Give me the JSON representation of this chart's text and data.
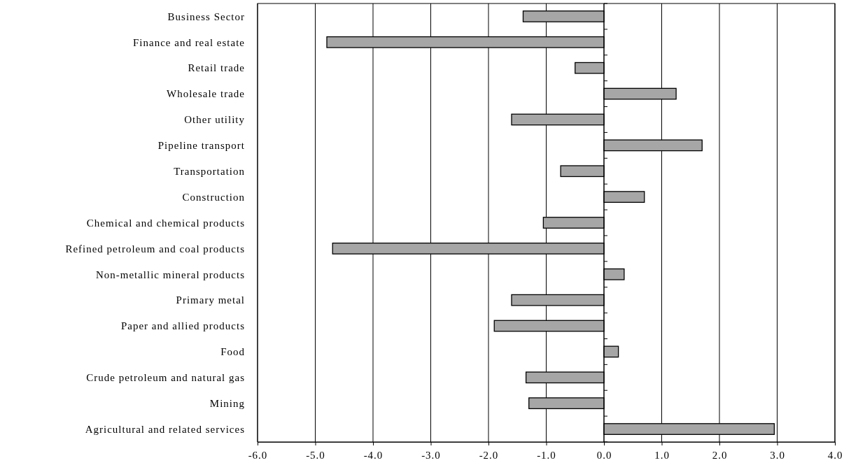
{
  "chart_data": {
    "type": "bar",
    "orientation": "horizontal",
    "categories": [
      "Business Sector",
      "Finance and real estate",
      "Retail trade",
      "Wholesale trade",
      "Other utility",
      "Pipeline transport",
      "Transportation",
      "Construction",
      "Chemical and chemical products",
      "Refined petroleum and coal products",
      "Non-metallic mineral products",
      "Primary metal",
      "Paper and allied products",
      "Food",
      "Crude petroleum and natural gas",
      "Mining",
      "Agricultural and related services"
    ],
    "values": [
      -1.4,
      -4.8,
      -0.5,
      1.25,
      -1.6,
      1.7,
      -0.75,
      0.7,
      -1.05,
      -4.7,
      0.35,
      -1.6,
      -1.9,
      0.25,
      -1.35,
      -1.3,
      2.95
    ],
    "color": "#a6a6a6",
    "xlim": [
      -6,
      4
    ],
    "xticks": [
      {
        "value": -6,
        "label": "-6.0"
      },
      {
        "value": -5,
        "label": "-5.0"
      },
      {
        "value": -4,
        "label": "-4.0"
      },
      {
        "value": -3,
        "label": "-3.0"
      },
      {
        "value": -2,
        "label": "-2.0"
      },
      {
        "value": -1,
        "label": "-1.0"
      },
      {
        "value": 0,
        "label": "0.0"
      },
      {
        "value": 1,
        "label": "1.0"
      },
      {
        "value": 2,
        "label": "2.0"
      },
      {
        "value": 3,
        "label": "3.0"
      },
      {
        "value": 4,
        "label": "4.0"
      }
    ],
    "grid": "x"
  }
}
